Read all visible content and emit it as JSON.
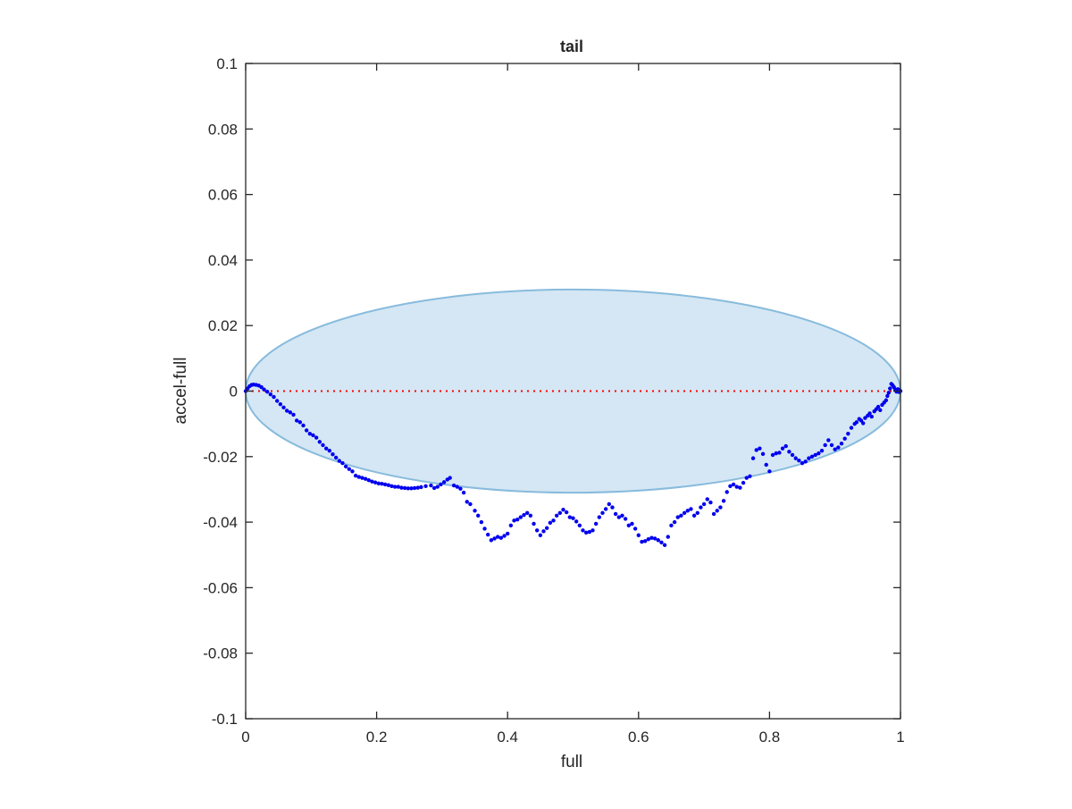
{
  "chart_data": {
    "type": "scatter",
    "title": "tail",
    "xlabel": "full",
    "ylabel": "accel-full",
    "xlim": [
      0,
      1
    ],
    "ylim": [
      -0.1,
      0.1
    ],
    "xticks": [
      0,
      0.2,
      0.4,
      0.6,
      0.8,
      1
    ],
    "xtick_labels": [
      "0",
      "0.2",
      "0.4",
      "0.6",
      "0.8",
      "1"
    ],
    "yticks": [
      -0.1,
      -0.08,
      -0.06,
      -0.04,
      -0.02,
      0,
      0.02,
      0.04,
      0.06,
      0.08,
      0.1
    ],
    "ytick_labels": [
      "-0.1",
      "-0.08",
      "-0.06",
      "-0.04",
      "-0.02",
      "0",
      "0.02",
      "0.04",
      "0.06",
      "0.08",
      "0.1"
    ],
    "grid": false,
    "reference_line": {
      "y": 0,
      "style": "dotted",
      "color": "#ff0000"
    },
    "ellipse": {
      "cx": 0.5,
      "cy": 0,
      "rx": 0.5,
      "ry": 0.031,
      "fill": "#d5e7f4",
      "stroke": "#88bbdd"
    },
    "series": [
      {
        "color": "#0000ee",
        "points": [
          [
            0.0,
            0.0
          ],
          [
            0.003,
            0.0008
          ],
          [
            0.006,
            0.0015
          ],
          [
            0.009,
            0.0019
          ],
          [
            0.012,
            0.002
          ],
          [
            0.016,
            0.0019
          ],
          [
            0.02,
            0.0017
          ],
          [
            0.024,
            0.0012
          ],
          [
            0.028,
            0.0005
          ],
          [
            0.033,
            -0.0002
          ],
          [
            0.038,
            -0.001
          ],
          [
            0.043,
            -0.0018
          ],
          [
            0.048,
            -0.003
          ],
          [
            0.053,
            -0.004
          ],
          [
            0.058,
            -0.005
          ],
          [
            0.063,
            -0.006
          ],
          [
            0.068,
            -0.0065
          ],
          [
            0.073,
            -0.0072
          ],
          [
            0.078,
            -0.009
          ],
          [
            0.083,
            -0.0095
          ],
          [
            0.088,
            -0.0105
          ],
          [
            0.093,
            -0.012
          ],
          [
            0.098,
            -0.013
          ],
          [
            0.103,
            -0.0135
          ],
          [
            0.108,
            -0.0142
          ],
          [
            0.113,
            -0.0155
          ],
          [
            0.118,
            -0.0165
          ],
          [
            0.123,
            -0.0175
          ],
          [
            0.128,
            -0.0182
          ],
          [
            0.133,
            -0.0193
          ],
          [
            0.138,
            -0.0203
          ],
          [
            0.143,
            -0.0213
          ],
          [
            0.148,
            -0.022
          ],
          [
            0.153,
            -0.023
          ],
          [
            0.158,
            -0.0238
          ],
          [
            0.163,
            -0.0245
          ],
          [
            0.168,
            -0.0258
          ],
          [
            0.173,
            -0.0262
          ],
          [
            0.178,
            -0.0265
          ],
          [
            0.183,
            -0.0268
          ],
          [
            0.188,
            -0.0272
          ],
          [
            0.193,
            -0.0276
          ],
          [
            0.198,
            -0.0279
          ],
          [
            0.203,
            -0.0282
          ],
          [
            0.208,
            -0.0283
          ],
          [
            0.213,
            -0.0285
          ],
          [
            0.218,
            -0.0287
          ],
          [
            0.223,
            -0.029
          ],
          [
            0.228,
            -0.0292
          ],
          [
            0.233,
            -0.0292
          ],
          [
            0.238,
            -0.0295
          ],
          [
            0.243,
            -0.0296
          ],
          [
            0.248,
            -0.0297
          ],
          [
            0.253,
            -0.0297
          ],
          [
            0.258,
            -0.0296
          ],
          [
            0.263,
            -0.0295
          ],
          [
            0.268,
            -0.0293
          ],
          [
            0.275,
            -0.029
          ],
          [
            0.283,
            -0.0288
          ],
          [
            0.288,
            -0.0296
          ],
          [
            0.293,
            -0.0292
          ],
          [
            0.298,
            -0.0285
          ],
          [
            0.303,
            -0.0278
          ],
          [
            0.308,
            -0.027
          ],
          [
            0.312,
            -0.0265
          ],
          [
            0.318,
            -0.0288
          ],
          [
            0.323,
            -0.0292
          ],
          [
            0.328,
            -0.0298
          ],
          [
            0.333,
            -0.031
          ],
          [
            0.338,
            -0.0338
          ],
          [
            0.343,
            -0.0345
          ],
          [
            0.35,
            -0.0365
          ],
          [
            0.355,
            -0.038
          ],
          [
            0.36,
            -0.04
          ],
          [
            0.365,
            -0.042
          ],
          [
            0.37,
            -0.0438
          ],
          [
            0.375,
            -0.0455
          ],
          [
            0.38,
            -0.045
          ],
          [
            0.385,
            -0.0445
          ],
          [
            0.39,
            -0.0448
          ],
          [
            0.395,
            -0.0442
          ],
          [
            0.4,
            -0.0435
          ],
          [
            0.405,
            -0.041
          ],
          [
            0.41,
            -0.0395
          ],
          [
            0.415,
            -0.0392
          ],
          [
            0.42,
            -0.0385
          ],
          [
            0.425,
            -0.0378
          ],
          [
            0.43,
            -0.0372
          ],
          [
            0.435,
            -0.038
          ],
          [
            0.44,
            -0.0405
          ],
          [
            0.445,
            -0.0425
          ],
          [
            0.45,
            -0.044
          ],
          [
            0.455,
            -0.0428
          ],
          [
            0.46,
            -0.0418
          ],
          [
            0.465,
            -0.0402
          ],
          [
            0.47,
            -0.0395
          ],
          [
            0.475,
            -0.038
          ],
          [
            0.48,
            -0.0372
          ],
          [
            0.485,
            -0.0362
          ],
          [
            0.49,
            -0.037
          ],
          [
            0.495,
            -0.0385
          ],
          [
            0.5,
            -0.0388
          ],
          [
            0.505,
            -0.0398
          ],
          [
            0.51,
            -0.041
          ],
          [
            0.515,
            -0.0425
          ],
          [
            0.52,
            -0.0432
          ],
          [
            0.525,
            -0.043
          ],
          [
            0.53,
            -0.0425
          ],
          [
            0.535,
            -0.0405
          ],
          [
            0.54,
            -0.0385
          ],
          [
            0.545,
            -0.0372
          ],
          [
            0.55,
            -0.036
          ],
          [
            0.555,
            -0.0345
          ],
          [
            0.56,
            -0.0355
          ],
          [
            0.565,
            -0.0375
          ],
          [
            0.57,
            -0.0385
          ],
          [
            0.575,
            -0.038
          ],
          [
            0.58,
            -0.039
          ],
          [
            0.585,
            -0.041
          ],
          [
            0.59,
            -0.0405
          ],
          [
            0.595,
            -0.042
          ],
          [
            0.6,
            -0.044
          ],
          [
            0.605,
            -0.046
          ],
          [
            0.61,
            -0.0458
          ],
          [
            0.615,
            -0.0452
          ],
          [
            0.62,
            -0.0448
          ],
          [
            0.625,
            -0.045
          ],
          [
            0.63,
            -0.0455
          ],
          [
            0.635,
            -0.0462
          ],
          [
            0.64,
            -0.047
          ],
          [
            0.645,
            -0.0445
          ],
          [
            0.65,
            -0.041
          ],
          [
            0.655,
            -0.04
          ],
          [
            0.66,
            -0.0385
          ],
          [
            0.665,
            -0.038
          ],
          [
            0.67,
            -0.0372
          ],
          [
            0.675,
            -0.0365
          ],
          [
            0.68,
            -0.036
          ],
          [
            0.685,
            -0.038
          ],
          [
            0.69,
            -0.0372
          ],
          [
            0.695,
            -0.0355
          ],
          [
            0.7,
            -0.0345
          ],
          [
            0.705,
            -0.033
          ],
          [
            0.71,
            -0.034
          ],
          [
            0.715,
            -0.0375
          ],
          [
            0.72,
            -0.0365
          ],
          [
            0.725,
            -0.0355
          ],
          [
            0.73,
            -0.0335
          ],
          [
            0.735,
            -0.0308
          ],
          [
            0.74,
            -0.029
          ],
          [
            0.745,
            -0.0285
          ],
          [
            0.75,
            -0.0292
          ],
          [
            0.755,
            -0.0295
          ],
          [
            0.76,
            -0.028
          ],
          [
            0.765,
            -0.0265
          ],
          [
            0.77,
            -0.026
          ],
          [
            0.775,
            -0.0205
          ],
          [
            0.78,
            -0.018
          ],
          [
            0.785,
            -0.0175
          ],
          [
            0.79,
            -0.0192
          ],
          [
            0.795,
            -0.0225
          ],
          [
            0.8,
            -0.0245
          ],
          [
            0.805,
            -0.0195
          ],
          [
            0.81,
            -0.019
          ],
          [
            0.815,
            -0.0188
          ],
          [
            0.82,
            -0.0175
          ],
          [
            0.825,
            -0.0168
          ],
          [
            0.83,
            -0.0185
          ],
          [
            0.835,
            -0.0195
          ],
          [
            0.84,
            -0.0205
          ],
          [
            0.845,
            -0.0212
          ],
          [
            0.85,
            -0.022
          ],
          [
            0.855,
            -0.0215
          ],
          [
            0.86,
            -0.0205
          ],
          [
            0.865,
            -0.02
          ],
          [
            0.87,
            -0.0195
          ],
          [
            0.875,
            -0.019
          ],
          [
            0.88,
            -0.0182
          ],
          [
            0.885,
            -0.0165
          ],
          [
            0.89,
            -0.015
          ],
          [
            0.895,
            -0.0165
          ],
          [
            0.9,
            -0.0178
          ],
          [
            0.905,
            -0.0172
          ],
          [
            0.91,
            -0.016
          ],
          [
            0.915,
            -0.0145
          ],
          [
            0.92,
            -0.013
          ],
          [
            0.925,
            -0.0112
          ],
          [
            0.93,
            -0.01
          ],
          [
            0.933,
            -0.0095
          ],
          [
            0.937,
            -0.0085
          ],
          [
            0.94,
            -0.009
          ],
          [
            0.943,
            -0.0098
          ],
          [
            0.946,
            -0.0082
          ],
          [
            0.95,
            -0.0075
          ],
          [
            0.953,
            -0.0068
          ],
          [
            0.956,
            -0.0078
          ],
          [
            0.96,
            -0.0062
          ],
          [
            0.963,
            -0.0055
          ],
          [
            0.966,
            -0.0048
          ],
          [
            0.969,
            -0.0058
          ],
          [
            0.972,
            -0.0042
          ],
          [
            0.975,
            -0.0035
          ],
          [
            0.978,
            -0.0028
          ],
          [
            0.98,
            -0.0015
          ],
          [
            0.982,
            -0.0005
          ],
          [
            0.984,
            0.0008
          ],
          [
            0.986,
            0.0022
          ],
          [
            0.988,
            0.0018
          ],
          [
            0.99,
            0.0012
          ],
          [
            0.992,
            0.0005
          ],
          [
            0.994,
            -0.0002
          ],
          [
            0.996,
            0.0006
          ],
          [
            0.997,
            0.0004
          ],
          [
            0.998,
            -0.0003
          ],
          [
            0.999,
            0.0002
          ],
          [
            1.0,
            0.0
          ]
        ]
      }
    ]
  }
}
